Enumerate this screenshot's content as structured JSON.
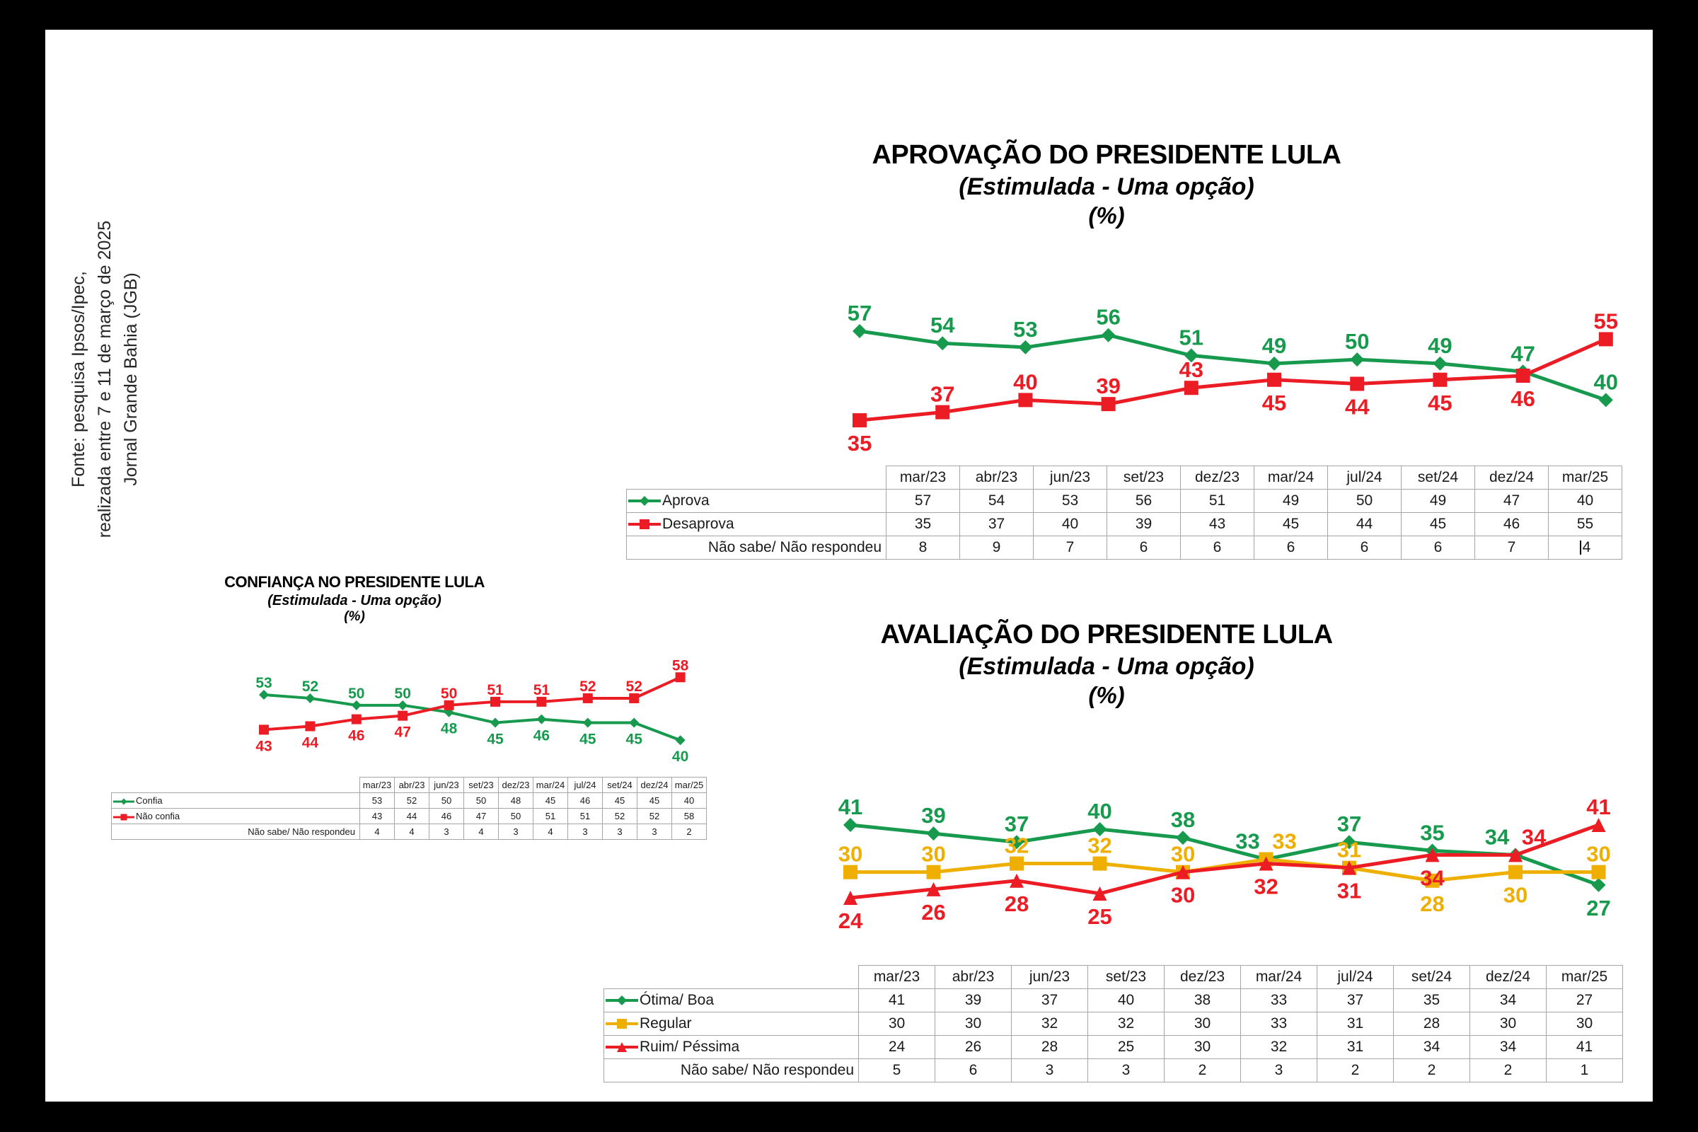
{
  "source_note": {
    "lines": [
      "Fonte: pesquisa Ipsos/Ipec,",
      "realizada entre 7 e 11 de março de 2025",
      "Jornal Grande Bahia (JGB)"
    ]
  },
  "colors": {
    "green": "#179A4E",
    "red": "#EC1C24",
    "yellow": "#EFAF00",
    "table_border": "#A6A6A6",
    "text": "#1A1A1A"
  },
  "chart_data": [
    {
      "id": "aprovacao",
      "type": "line",
      "title": "APROVAÇÃO DO PRESIDENTE LULA",
      "subtitle": "(Estimulada - Uma opção)",
      "unit": "(%)",
      "categories": [
        "mar/23",
        "abr/23",
        "jun/23",
        "set/23",
        "dez/23",
        "mar/24",
        "jul/24",
        "set/24",
        "dez/24",
        "mar/25"
      ],
      "ylim": [
        30,
        60
      ],
      "grid": false,
      "legend_position": "table-left",
      "series": [
        {
          "name": "Aprova",
          "color": "green",
          "marker": "diamond",
          "values": [
            57,
            54,
            53,
            56,
            51,
            49,
            50,
            49,
            47,
            40
          ],
          "label_pos": [
            "above",
            "above",
            "above",
            "above",
            "above",
            "above",
            "above",
            "above",
            "above",
            "above"
          ]
        },
        {
          "name": "Desaprova",
          "color": "red",
          "marker": "square",
          "values": [
            35,
            37,
            40,
            39,
            43,
            45,
            44,
            45,
            46,
            55
          ],
          "label_pos": [
            "below",
            "above",
            "above",
            "above",
            "above",
            "below",
            "below",
            "below",
            "below",
            "above"
          ]
        }
      ],
      "extra_row": {
        "label": "Não sabe/ Não respondeu",
        "values": [
          8,
          9,
          7,
          6,
          6,
          6,
          6,
          6,
          7,
          4
        ],
        "caret_on_last": true
      }
    },
    {
      "id": "confianca",
      "type": "line",
      "title": "CONFIANÇA NO PRESIDENTE LULA",
      "subtitle": "(Estimulada - Uma opção)",
      "unit": "(%)",
      "categories": [
        "mar/23",
        "abr/23",
        "jun/23",
        "set/23",
        "dez/23",
        "mar/24",
        "jul/24",
        "set/24",
        "dez/24",
        "mar/25"
      ],
      "ylim": [
        35,
        62
      ],
      "grid": false,
      "legend_position": "table-left",
      "series": [
        {
          "name": "Confia",
          "color": "green",
          "marker": "diamond",
          "values": [
            53,
            52,
            50,
            50,
            48,
            45,
            46,
            45,
            45,
            40
          ],
          "label_pos": [
            "above",
            "above",
            "above",
            "above",
            "below",
            "below",
            "below",
            "below",
            "below",
            "below"
          ]
        },
        {
          "name": "Não confia",
          "color": "red",
          "marker": "square",
          "values": [
            43,
            44,
            46,
            47,
            50,
            51,
            51,
            52,
            52,
            58
          ],
          "label_pos": [
            "below",
            "below",
            "below",
            "below",
            "above",
            "above",
            "above",
            "above",
            "above",
            "above"
          ]
        }
      ],
      "extra_row": {
        "label": "Não sabe/ Não respondeu",
        "values": [
          4,
          4,
          3,
          4,
          3,
          4,
          3,
          3,
          3,
          2
        ],
        "caret_on_last": false
      }
    },
    {
      "id": "avaliacao",
      "type": "line",
      "title": "AVALIAÇÃO DO PRESIDENTE LULA",
      "subtitle": "(Estimulada - Uma opção)",
      "unit": "(%)",
      "categories": [
        "mar/23",
        "abr/23",
        "jun/23",
        "set/23",
        "dez/23",
        "mar/24",
        "jul/24",
        "set/24",
        "dez/24",
        "mar/25"
      ],
      "ylim": [
        20,
        45
      ],
      "grid": false,
      "legend_position": "table-left",
      "series": [
        {
          "name": "Ótima/ Boa",
          "color": "green",
          "marker": "diamond",
          "values": [
            41,
            39,
            37,
            40,
            38,
            33,
            37,
            35,
            34,
            27
          ],
          "label_pos": [
            "above",
            "above",
            "above",
            "above",
            "above",
            "above-left",
            "above",
            "above",
            "above-left",
            "below"
          ]
        },
        {
          "name": "Regular",
          "color": "yellow",
          "marker": "square",
          "values": [
            30,
            30,
            32,
            32,
            30,
            33,
            31,
            28,
            30,
            30
          ],
          "label_pos": [
            "above",
            "above",
            "above",
            "above",
            "above",
            "above-right",
            "above",
            "below",
            "below",
            "above"
          ]
        },
        {
          "name": "Ruim/ Péssima",
          "color": "red",
          "marker": "triangle",
          "values": [
            24,
            26,
            28,
            25,
            30,
            32,
            31,
            34,
            34,
            41
          ],
          "label_pos": [
            "below",
            "below",
            "below",
            "below",
            "below",
            "below",
            "below",
            "below",
            "above-right",
            "above"
          ]
        }
      ],
      "extra_row": {
        "label": "Não sabe/ Não respondeu",
        "values": [
          5,
          6,
          3,
          3,
          2,
          3,
          2,
          2,
          2,
          1
        ],
        "caret_on_last": false
      }
    }
  ]
}
